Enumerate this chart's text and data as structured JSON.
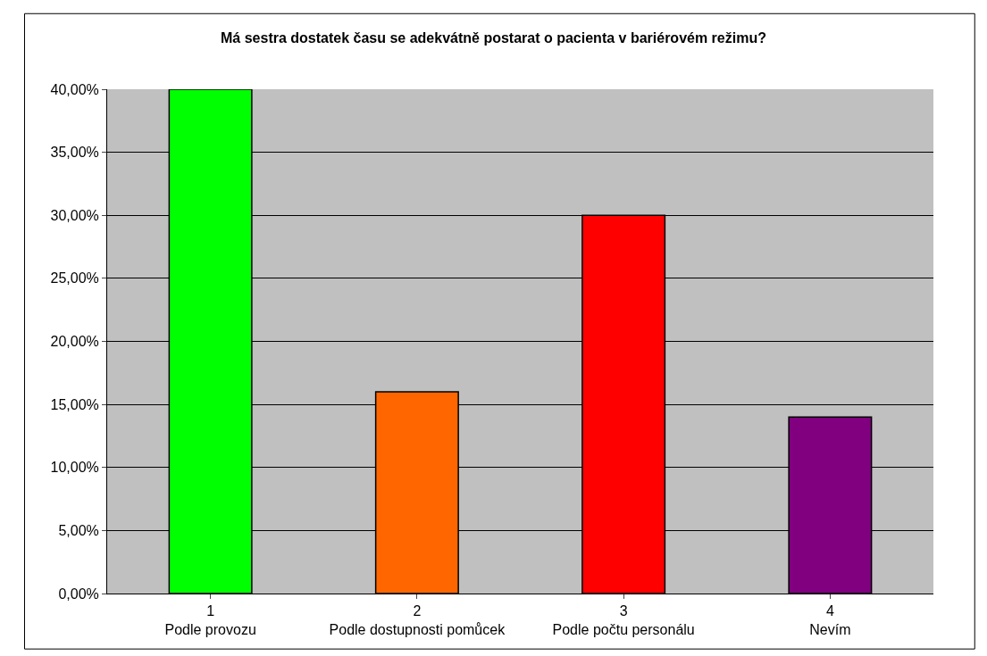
{
  "chart_data": {
    "type": "bar",
    "title": "Má sestra dostatek času se adekvátně postarat o pacienta v bariérovém režimu?",
    "categories": [
      "1\nPodle provozu",
      "2\nPodle dostupnosti pomůcek",
      "3\nPodle počtu personálu",
      "4\nNevím"
    ],
    "values": [
      40,
      16,
      30,
      14
    ],
    "colors": [
      "#00ff00",
      "#ff6600",
      "#ff0000",
      "#800080"
    ],
    "ylim": [
      0,
      40
    ],
    "yticks": [
      {
        "value": 0,
        "label": "0,00%"
      },
      {
        "value": 5,
        "label": "5,00%"
      },
      {
        "value": 10,
        "label": "10,00%"
      },
      {
        "value": 15,
        "label": "15,00%"
      },
      {
        "value": 20,
        "label": "20,00%"
      },
      {
        "value": 25,
        "label": "25,00%"
      },
      {
        "value": 30,
        "label": "30,00%"
      },
      {
        "value": 35,
        "label": "35,00%"
      },
      {
        "value": 40,
        "label": "40,00%"
      }
    ],
    "grid": "y"
  }
}
